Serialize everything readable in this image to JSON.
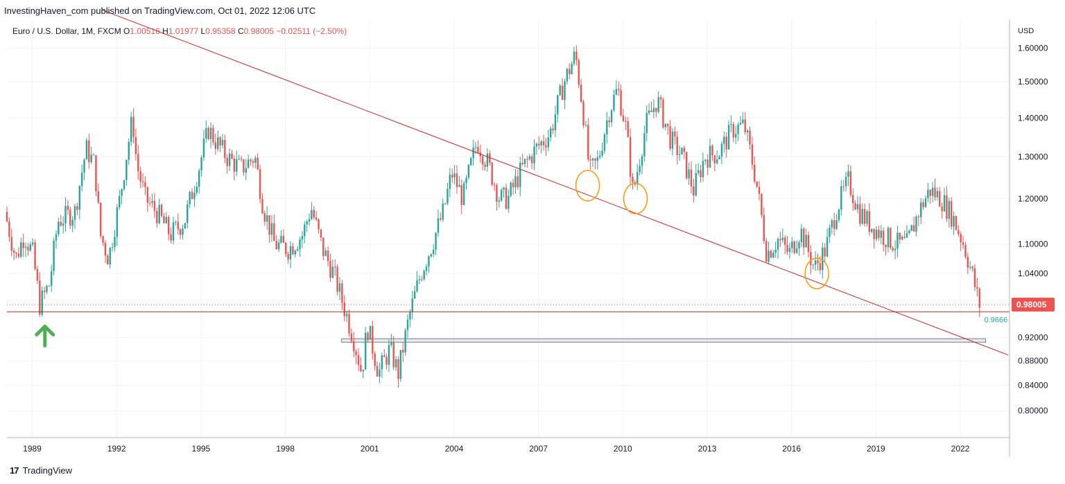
{
  "header": {
    "text": "InvestingHaven_com published on TradingView.com, Oct 01, 2022 12:06 UTC"
  },
  "legend": {
    "symbol": "Euro / U.S. Dollar, 1M, FXCM",
    "o_label": "O",
    "o_value": "1.00516",
    "h_label": "H",
    "h_value": "1.01977",
    "l_label": "L",
    "l_value": "0.95358",
    "c_label": "C",
    "c_value": "0.98005",
    "change": "−0.02511 (−2.50%)"
  },
  "footer": {
    "brand": "TradingView",
    "logo_glyph": "17"
  },
  "colors": {
    "up": "#26a69a",
    "down": "#ef5350",
    "trendline": "#c62828",
    "circle": "#ff9800",
    "arrow": "#4caf50",
    "grid": "#f0f3fa",
    "axis": "#b2b5be"
  },
  "chart_data": {
    "type": "candlestick",
    "title": "Euro / U.S. Dollar, 1M, FXCM",
    "y_axis_label": "USD",
    "y_ticks": [
      0.8,
      0.84,
      0.88,
      0.92,
      1.04,
      1.1,
      1.2,
      1.3,
      1.4,
      1.5,
      1.6
    ],
    "y_tick_labels": [
      "0.80000",
      "0.84000",
      "0.88000",
      "0.92000",
      "1.04000",
      "1.10000",
      "1.20000",
      "1.30000",
      "1.40000",
      "1.50000",
      "1.60000"
    ],
    "x_ticks": [
      1989,
      1992,
      1995,
      1998,
      2001,
      2004,
      2007,
      2010,
      2013,
      2016,
      2019,
      2022
    ],
    "x_tick_labels": [
      "1989",
      "1992",
      "1995",
      "1998",
      "2001",
      "2004",
      "2007",
      "2010",
      "2013",
      "2016",
      "2019",
      "2022"
    ],
    "x_range": [
      1988.1,
      2023.75
    ],
    "y_range": [
      0.76,
      1.69
    ],
    "last_price": 0.98005,
    "last_price_label": "0.98005",
    "low_marker": 0.9666,
    "low_marker_label": "0.9666",
    "support_level": 0.9666,
    "support_zone": {
      "x_start": 2000.0,
      "x_end": 2022.9,
      "y_low": 0.912,
      "y_high": 0.918
    },
    "trendline": {
      "x1": 1991.5,
      "y1": 1.72,
      "x2": 2023.7,
      "y2": 0.89
    },
    "circles": [
      {
        "x": 2008.75,
        "y": 1.23
      },
      {
        "x": 2010.45,
        "y": 1.2
      },
      {
        "x": 2016.9,
        "y": 1.04
      }
    ],
    "arrow": {
      "x": 1989.45,
      "y": 0.945
    },
    "price_path": [
      [
        1988.1,
        1.17
      ],
      [
        1988.5,
        1.07
      ],
      [
        1988.8,
        1.12
      ],
      [
        1989.1,
        1.08
      ],
      [
        1989.35,
        0.98
      ],
      [
        1989.7,
        1.02
      ],
      [
        1990.0,
        1.15
      ],
      [
        1990.6,
        1.17
      ],
      [
        1991.0,
        1.32
      ],
      [
        1991.3,
        1.28
      ],
      [
        1991.5,
        1.12
      ],
      [
        1991.8,
        1.07
      ],
      [
        1992.2,
        1.2
      ],
      [
        1992.65,
        1.4
      ],
      [
        1992.8,
        1.28
      ],
      [
        1993.1,
        1.2
      ],
      [
        1993.5,
        1.17
      ],
      [
        1994.0,
        1.12
      ],
      [
        1994.5,
        1.15
      ],
      [
        1995.0,
        1.27
      ],
      [
        1995.35,
        1.37
      ],
      [
        1995.6,
        1.34
      ],
      [
        1996.0,
        1.3
      ],
      [
        1996.5,
        1.27
      ],
      [
        1997.0,
        1.3
      ],
      [
        1997.3,
        1.18
      ],
      [
        1997.7,
        1.1
      ],
      [
        1998.2,
        1.09
      ],
      [
        1998.7,
        1.12
      ],
      [
        1999.0,
        1.18
      ],
      [
        1999.4,
        1.09
      ],
      [
        1999.8,
        1.04
      ],
      [
        2000.2,
        0.97
      ],
      [
        2000.5,
        0.92
      ],
      [
        2000.8,
        0.86
      ],
      [
        2001.0,
        0.94
      ],
      [
        2001.4,
        0.86
      ],
      [
        2001.8,
        0.9
      ],
      [
        2002.1,
        0.86
      ],
      [
        2002.5,
        0.96
      ],
      [
        2002.9,
        1.04
      ],
      [
        2003.3,
        1.1
      ],
      [
        2003.7,
        1.17
      ],
      [
        2004.0,
        1.26
      ],
      [
        2004.4,
        1.2
      ],
      [
        2004.9,
        1.34
      ],
      [
        2005.3,
        1.28
      ],
      [
        2005.7,
        1.2
      ],
      [
        2006.0,
        1.2
      ],
      [
        2006.5,
        1.27
      ],
      [
        2007.0,
        1.32
      ],
      [
        2007.5,
        1.36
      ],
      [
        2008.0,
        1.5
      ],
      [
        2008.4,
        1.58
      ],
      [
        2008.7,
        1.4
      ],
      [
        2008.9,
        1.26
      ],
      [
        2009.2,
        1.29
      ],
      [
        2009.6,
        1.42
      ],
      [
        2009.9,
        1.48
      ],
      [
        2010.2,
        1.37
      ],
      [
        2010.45,
        1.21
      ],
      [
        2010.9,
        1.38
      ],
      [
        2011.3,
        1.45
      ],
      [
        2011.8,
        1.34
      ],
      [
        2012.2,
        1.3
      ],
      [
        2012.6,
        1.22
      ],
      [
        2013.0,
        1.3
      ],
      [
        2013.5,
        1.31
      ],
      [
        2014.0,
        1.37
      ],
      [
        2014.4,
        1.38
      ],
      [
        2014.8,
        1.25
      ],
      [
        2015.2,
        1.08
      ],
      [
        2015.6,
        1.11
      ],
      [
        2016.0,
        1.08
      ],
      [
        2016.4,
        1.13
      ],
      [
        2016.9,
        1.05
      ],
      [
        2017.3,
        1.09
      ],
      [
        2017.7,
        1.18
      ],
      [
        2018.1,
        1.24
      ],
      [
        2018.5,
        1.17
      ],
      [
        2018.9,
        1.14
      ],
      [
        2019.3,
        1.12
      ],
      [
        2019.8,
        1.1
      ],
      [
        2020.2,
        1.1
      ],
      [
        2020.6,
        1.17
      ],
      [
        2021.0,
        1.22
      ],
      [
        2021.4,
        1.2
      ],
      [
        2021.8,
        1.16
      ],
      [
        2022.2,
        1.1
      ],
      [
        2022.5,
        1.04
      ],
      [
        2022.75,
        0.98
      ]
    ]
  }
}
